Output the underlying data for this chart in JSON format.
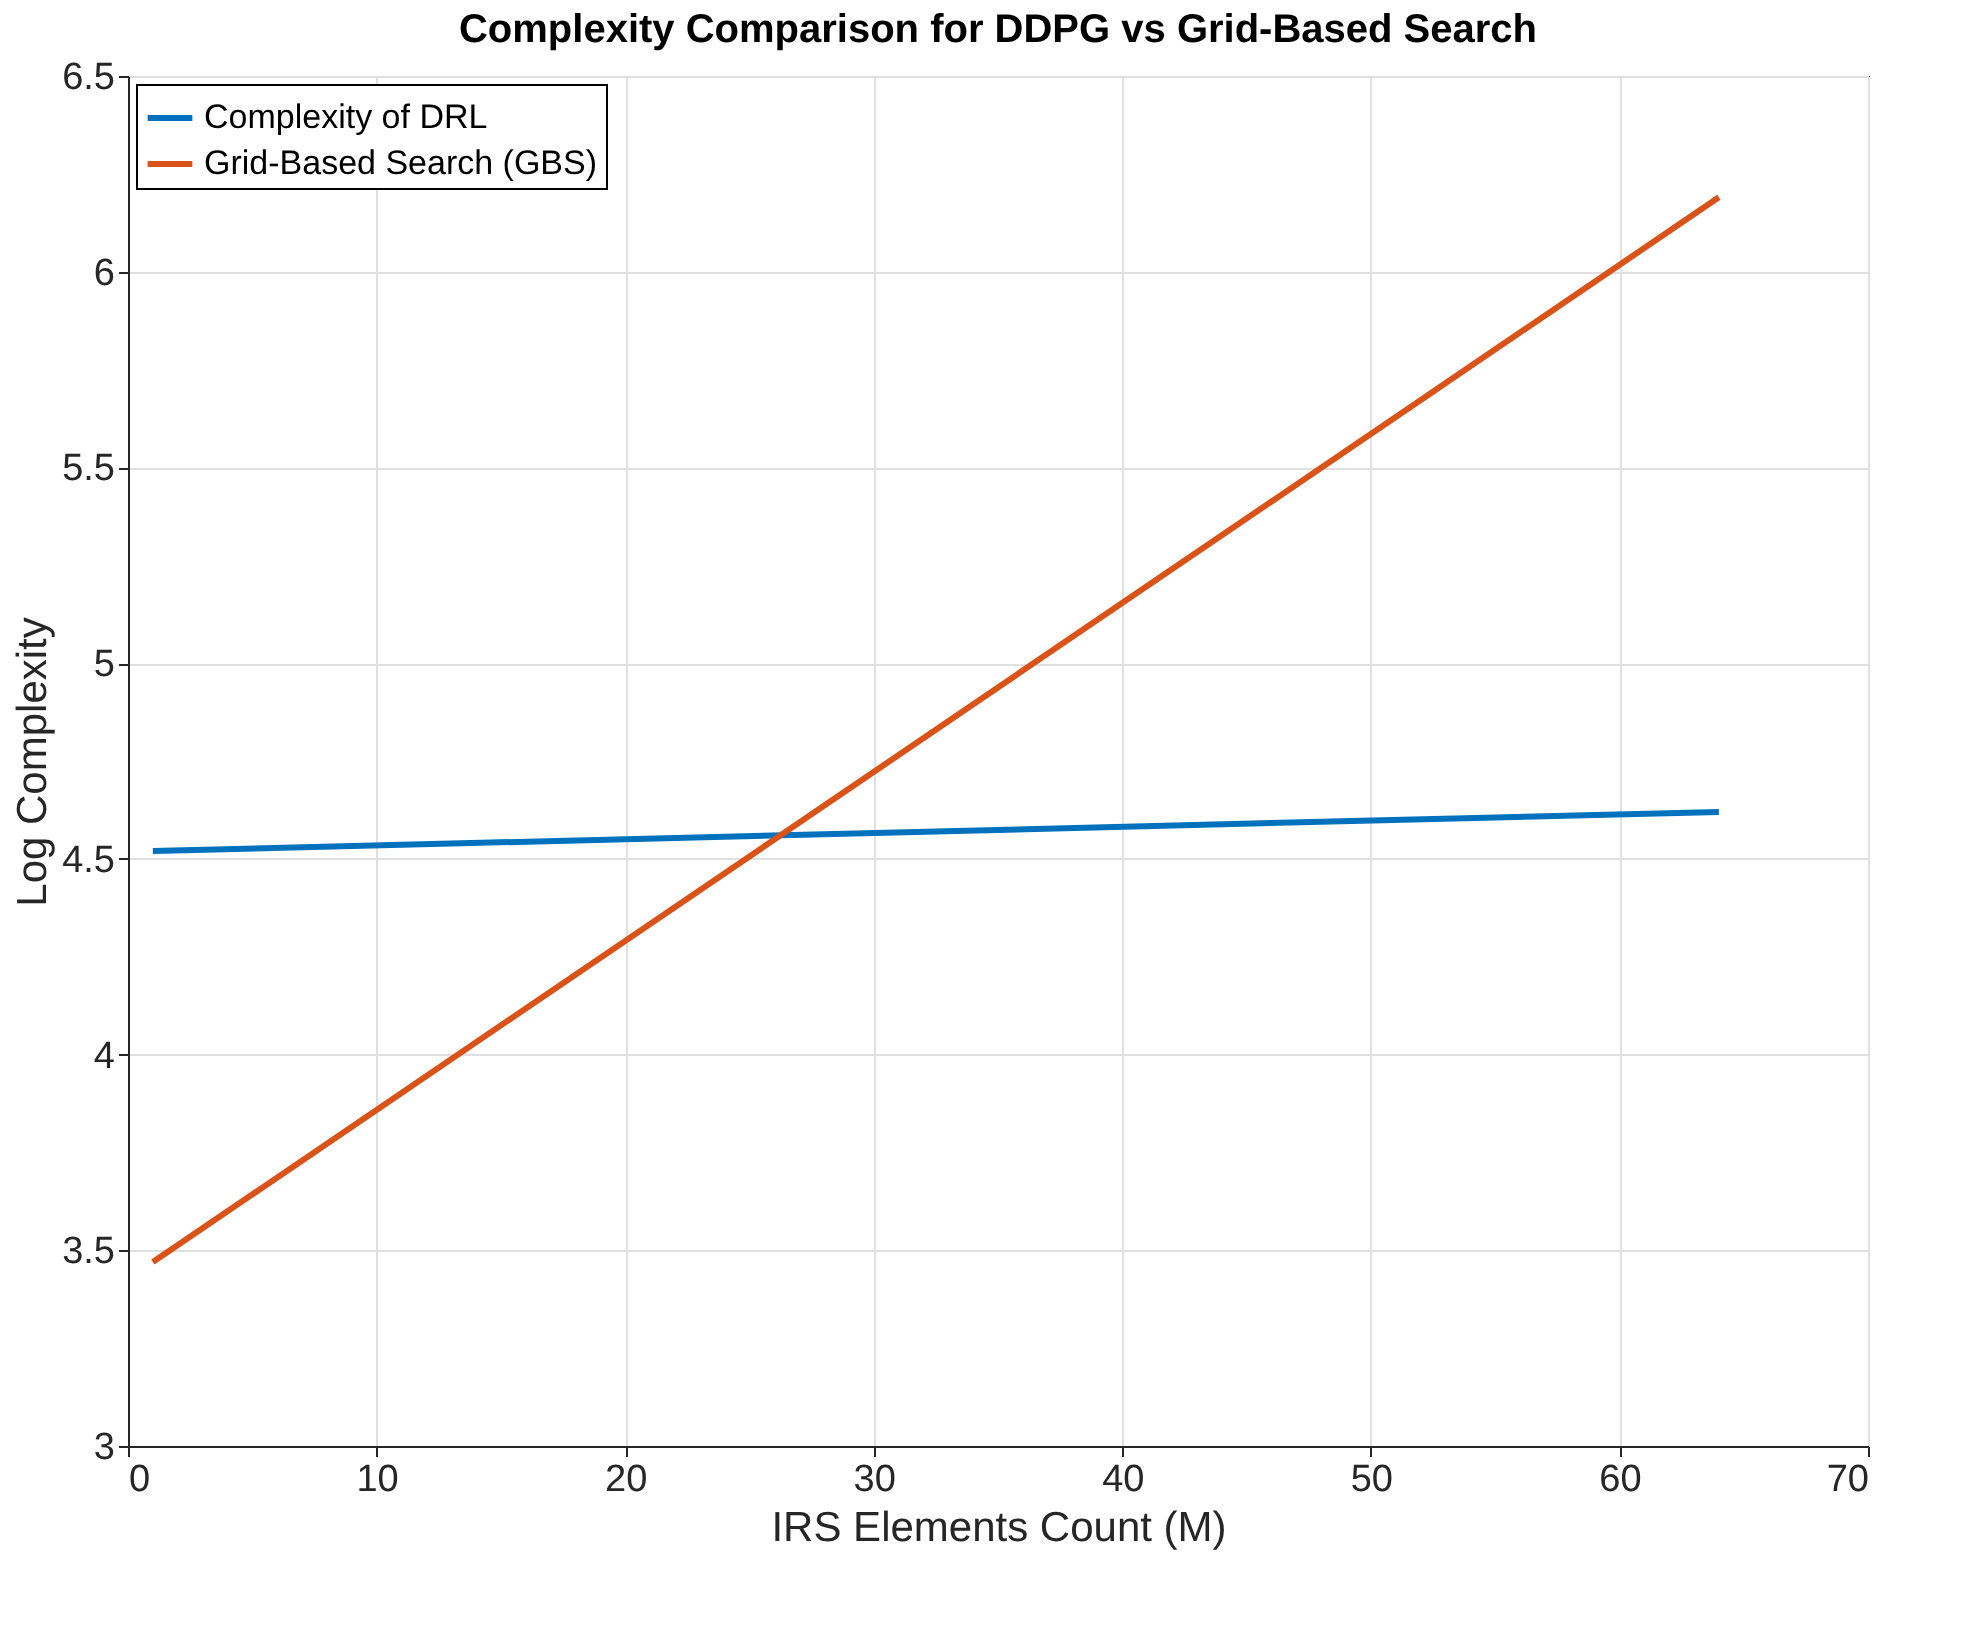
{
  "chart_data": {
    "type": "line",
    "title": "Complexity Comparison for DDPG vs Grid-Based Search",
    "xlabel": "IRS Elements Count (M)",
    "ylabel": "Log Complexity",
    "x": [
      1,
      64
    ],
    "series": [
      {
        "name": "Complexity of DRL",
        "color": "#0072bd",
        "values": [
          4.52,
          4.62
        ]
      },
      {
        "name": "Grid-Based Search (GBS)",
        "color": "#d95319",
        "values": [
          3.47,
          6.19
        ]
      }
    ],
    "xlim": [
      0,
      70
    ],
    "xticks": [
      0,
      10,
      20,
      30,
      40,
      50,
      60,
      70
    ],
    "ylim": [
      3,
      6.5
    ],
    "yticks": [
      3,
      3.5,
      4,
      4.5,
      5,
      5.5,
      6,
      6.5
    ],
    "grid": true,
    "legend": "top left",
    "marker": "none",
    "line_style": "solid"
  }
}
